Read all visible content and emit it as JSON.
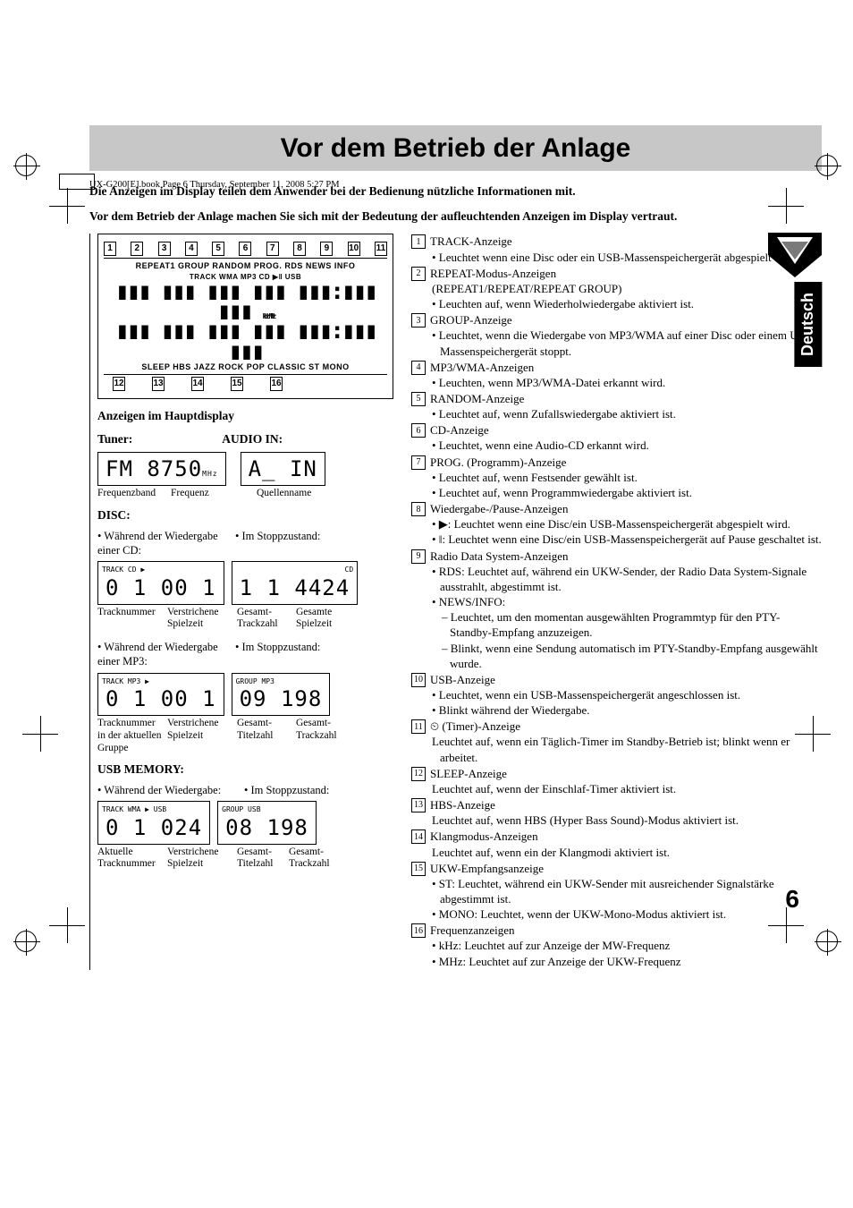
{
  "header_line": "UX-G200[E].book  Page 6  Thursday, September 11, 2008  5:27 PM",
  "side_tab": "Deutsch",
  "page_number": "6",
  "title": "Vor dem Betrieb der Anlage",
  "intro_1": "Die Anzeigen im Display teilen dem Anwender bei der Bedienung nützliche Informationen mit.",
  "intro_2": "Vor dem Betrieb der Anlage machen Sie sich mit der Bedeutung der aufleuchtenden Anzeigen im Display vertraut.",
  "display": {
    "top_nums": [
      "1",
      "2",
      "3",
      "4",
      "5",
      "6",
      "7",
      "8",
      "9",
      "10",
      "11"
    ],
    "row1": "REPEAT1 GROUP RANDOM PROG. RDS NEWS INFO",
    "row2": "TRACK WMA MP3 CD ▶‖ USB",
    "freq_labels": "kHz MHz",
    "row3": "SLEEP HBS JAZZ ROCK POP CLASSIC ST MONO",
    "bottom_nums": [
      "12",
      "13",
      "14",
      "15",
      "16"
    ]
  },
  "left": {
    "section1_head": "Anzeigen im Hauptdisplay",
    "tuner_label": "Tuner:",
    "audioin_label": "AUDIO IN:",
    "tuner_seg": "FM  8750",
    "tuner_unit": "MHz",
    "audioin_seg": "A_ IN",
    "tuner_cap1": "Frequenzband",
    "tuner_cap2": "Frequenz",
    "audioin_cap": "Quellenname",
    "disc_label": "DISC:",
    "disc_p1": "• Während der Wiedergabe einer CD:",
    "disc_p2": "• Im Stoppzustand:",
    "disc_seg1_tags": "TRACK   CD ▶",
    "disc_seg1": "0 1   00 1",
    "disc_seg2_tags": "CD",
    "disc_seg2": "1 1  4424",
    "disc_cap1a": "Tracknummer",
    "disc_cap1b": "Verstrichene Spielzeit",
    "disc_cap2a": "Gesamt-Trackzahl",
    "disc_cap2b": "Gesamte Spielzeit",
    "mp3_p1": "• Während der Wiedergabe einer MP3:",
    "mp3_p2": "• Im Stoppzustand:",
    "mp3_seg1_tags": "TRACK  MP3  ▶",
    "mp3_seg1": "0 1   00 1",
    "mp3_seg2_tags": "GROUP   MP3",
    "mp3_seg2": "09  198",
    "mp3_cap1a": "Tracknummer in der aktuellen Gruppe",
    "mp3_cap1b": "Verstrichene Spielzeit",
    "mp3_cap2a": "Gesamt-Titelzahl",
    "mp3_cap2b": "Gesamt-Trackzahl",
    "usb_label": "USB MEMORY:",
    "usb_p1": "• Während der Wiedergabe:",
    "usb_p2": "• Im Stoppzustand:",
    "usb_seg1_tags": "TRACK WMA   ▶ USB",
    "usb_seg1": "0 1  024",
    "usb_seg2_tags": "GROUP   USB",
    "usb_seg2": "08  198",
    "usb_cap1a": "Aktuelle Tracknummer",
    "usb_cap1b": "Verstrichene Spielzeit",
    "usb_cap2a": "Gesamt-Titelzahl",
    "usb_cap2b": "Gesamt-Trackzahl"
  },
  "right": [
    {
      "n": "1",
      "head": "TRACK-Anzeige",
      "lines": [
        "• Leuchtet wenn eine Disc oder ein USB-Massenspeichergerät abgespielt wird."
      ]
    },
    {
      "n": "2",
      "head": "REPEAT-Modus-Anzeigen",
      "lines": [
        "(REPEAT1/REPEAT/REPEAT GROUP)",
        "• Leuchten auf, wenn Wiederholwiedergabe aktiviert ist."
      ]
    },
    {
      "n": "3",
      "head": "GROUP-Anzeige",
      "lines": [
        "• Leuchtet, wenn die Wiedergabe von MP3/WMA auf einer Disc oder einem USB-Massenspeichergerät stoppt."
      ]
    },
    {
      "n": "4",
      "head": "MP3/WMA-Anzeigen",
      "lines": [
        "• Leuchten, wenn MP3/WMA-Datei erkannt wird."
      ]
    },
    {
      "n": "5",
      "head": "RANDOM-Anzeige",
      "lines": [
        "• Leuchtet auf, wenn Zufallswiedergabe aktiviert ist."
      ]
    },
    {
      "n": "6",
      "head": "CD-Anzeige",
      "lines": [
        "• Leuchtet, wenn eine Audio-CD erkannt wird."
      ]
    },
    {
      "n": "7",
      "head": "PROG. (Programm)-Anzeige",
      "lines": [
        "• Leuchtet auf, wenn Festsender gewählt ist.",
        "• Leuchtet auf, wenn Programmwiedergabe aktiviert ist."
      ]
    },
    {
      "n": "8",
      "head": "Wiedergabe-/Pause-Anzeigen",
      "lines": [
        "• ▶: Leuchtet wenn eine Disc/ein USB-Massenspeichergerät abgespielt wird.",
        "• ‖: Leuchtet wenn eine Disc/ein USB-Massenspeichergerät auf Pause geschaltet ist."
      ]
    },
    {
      "n": "9",
      "head": "Radio Data System-Anzeigen",
      "lines": [
        "• RDS: Leuchtet auf, während ein UKW-Sender, der Radio Data System-Signale ausstrahlt, abgestimmt ist.",
        "• NEWS/INFO:",
        "– Leuchtet, um den momentan ausgewählten Programmtyp für den PTY-Standby-Empfang anzuzeigen.",
        "– Blinkt, wenn eine Sendung automatisch im PTY-Standby-Empfang ausgewählt wurde."
      ]
    },
    {
      "n": "10",
      "head": "USB-Anzeige",
      "lines": [
        "• Leuchtet, wenn ein USB-Massenspeichergerät angeschlossen ist.",
        "• Blinkt während der Wiedergabe."
      ]
    },
    {
      "n": "11",
      "head": "⏲ (Timer)-Anzeige",
      "lines": [
        "Leuchtet auf, wenn ein Täglich-Timer im Standby-Betrieb ist; blinkt wenn er arbeitet."
      ]
    },
    {
      "n": "12",
      "head": "SLEEP-Anzeige",
      "lines": [
        "Leuchtet auf, wenn der Einschlaf-Timer aktiviert ist."
      ]
    },
    {
      "n": "13",
      "head": "HBS-Anzeige",
      "lines": [
        "Leuchtet auf, wenn HBS (Hyper Bass Sound)-Modus aktiviert ist."
      ]
    },
    {
      "n": "14",
      "head": "Klangmodus-Anzeigen",
      "lines": [
        "Leuchtet auf, wenn ein der Klangmodi aktiviert ist."
      ]
    },
    {
      "n": "15",
      "head": "UKW-Empfangsanzeige",
      "lines": [
        "• ST: Leuchtet, während ein UKW-Sender mit ausreichender Signalstärke abgestimmt ist.",
        "• MONO: Leuchtet, wenn der UKW-Mono-Modus aktiviert ist."
      ]
    },
    {
      "n": "16",
      "head": "Frequenzanzeigen",
      "lines": [
        "• kHz: Leuchtet auf zur Anzeige der MW-Frequenz",
        "• MHz: Leuchtet auf zur Anzeige der UKW-Frequenz"
      ]
    }
  ]
}
